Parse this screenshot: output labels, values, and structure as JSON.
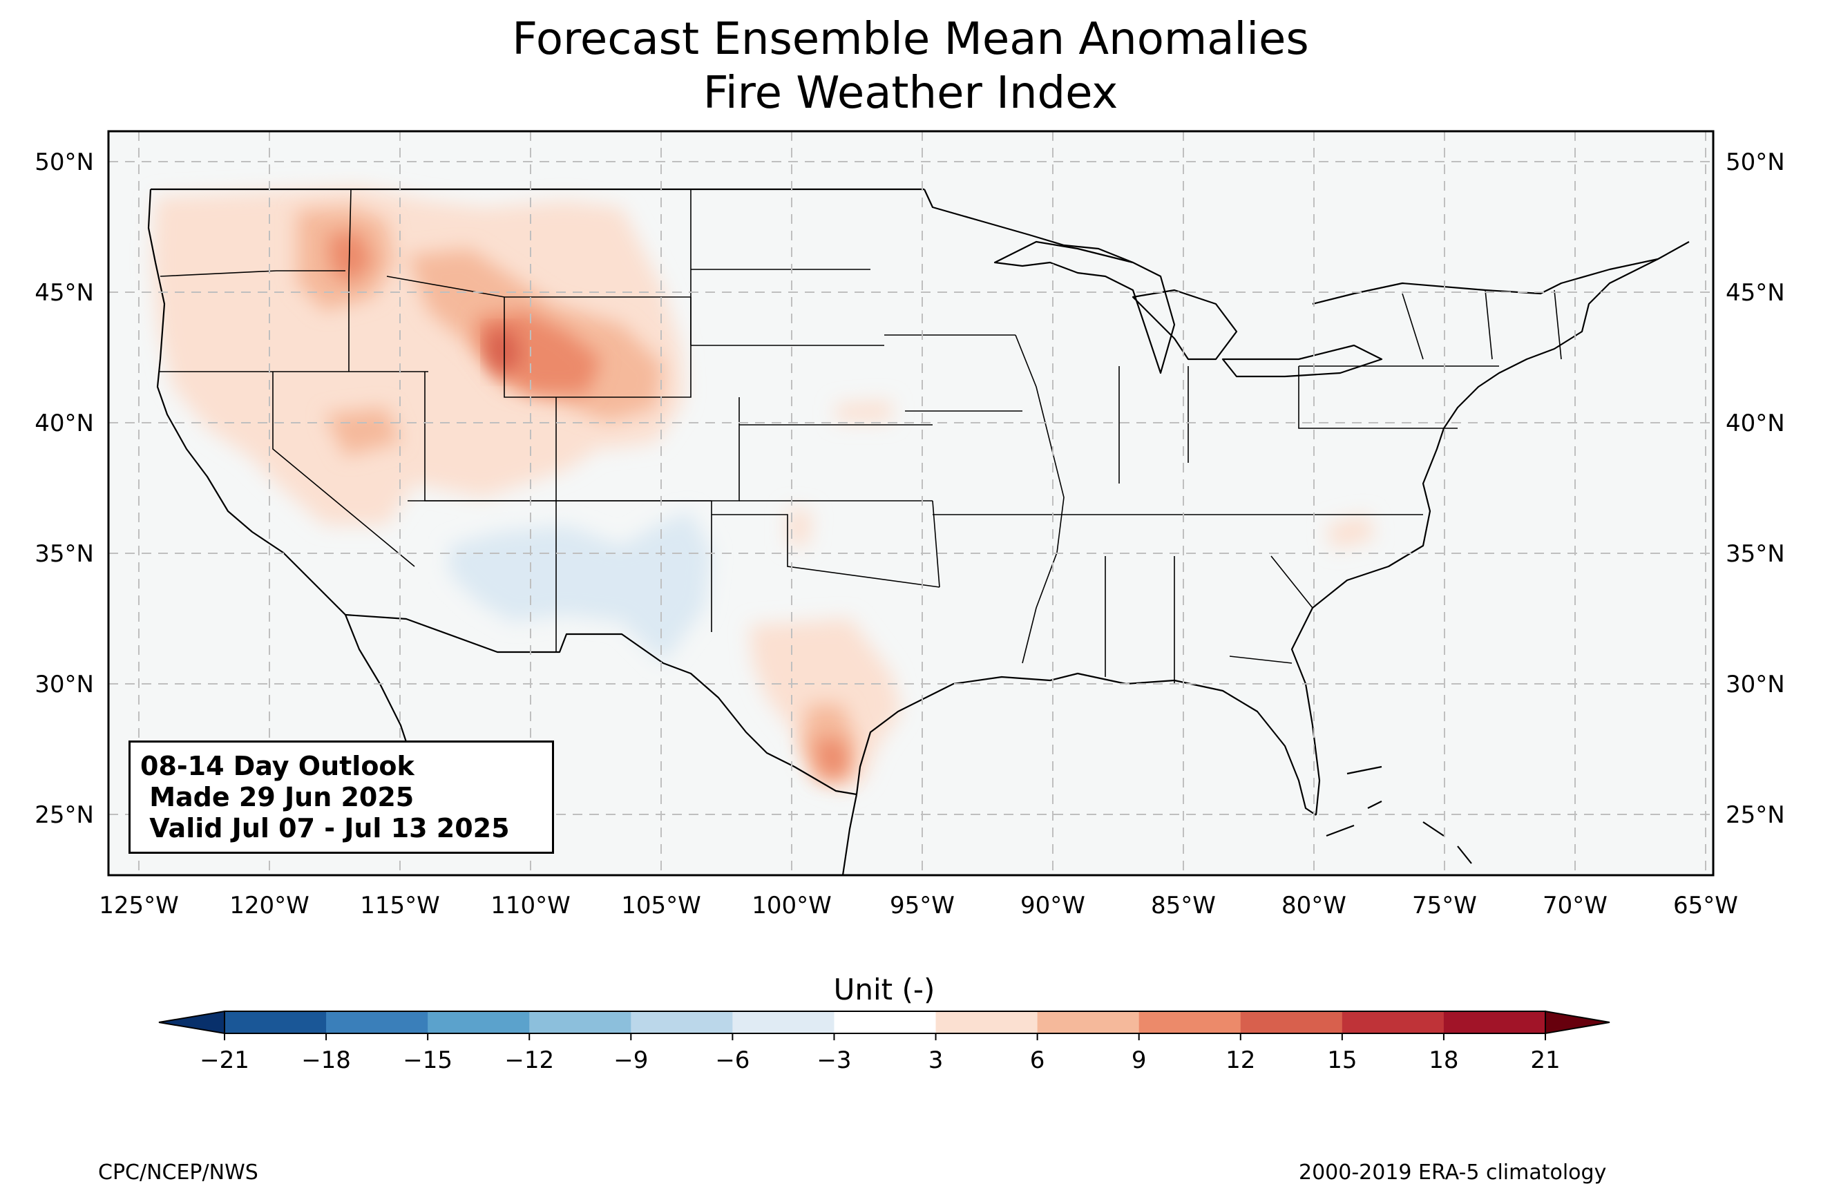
{
  "title": {
    "line1": "Forecast Ensemble Mean Anomalies",
    "line2": "Fire Weather Index"
  },
  "map": {
    "region": "CONUS",
    "lon_range": [
      -126.3,
      -64.9
    ],
    "lat_range": [
      22.8,
      51.2
    ],
    "grid": "dashed",
    "lon_ticks": [
      "125°W",
      "120°W",
      "115°W",
      "110°W",
      "105°W",
      "100°W",
      "95°W",
      "90°W",
      "85°W",
      "80°W",
      "75°W",
      "70°W",
      "65°W"
    ],
    "lat_ticks": [
      "50°N",
      "45°N",
      "40°N",
      "35°N",
      "30°N",
      "25°N"
    ],
    "anomaly_regions": [
      {
        "area": "Pacific Northwest / Northern Rockies",
        "level": "3 to 9"
      },
      {
        "area": "Central Idaho",
        "level": "9 to 15"
      },
      {
        "area": "Wyoming / Utah border",
        "level": "12 to 18"
      },
      {
        "area": "South Texas",
        "level": "9 to 15"
      },
      {
        "area": "Arizona / New Mexico",
        "level": "-6 to -3"
      }
    ]
  },
  "outlook": {
    "line1": "08-14 Day Outlook",
    "line2": " Made 29 Jun 2025",
    "line3": " Valid Jul 07 - Jul 13 2025"
  },
  "colorbar": {
    "title": "Unit (-)",
    "tick_labels": [
      "−21",
      "−18",
      "−15",
      "−12",
      "−9",
      "−6",
      "−3",
      "3",
      "6",
      "9",
      "12",
      "15",
      "18",
      "21"
    ],
    "colors": [
      "#08306b",
      "#1a5797",
      "#3a7fba",
      "#5ba2cc",
      "#8cbfdc",
      "#bbd7ea",
      "#e0ebf4",
      "#ffffff",
      "#fbe0d1",
      "#f5b99b",
      "#ec8a6a",
      "#d8604d",
      "#bf3338",
      "#a11428",
      "#67000d"
    ]
  },
  "credits": {
    "left": "CPC/NCEP/NWS",
    "right": "2000-2019 ERA-5 climatology"
  }
}
